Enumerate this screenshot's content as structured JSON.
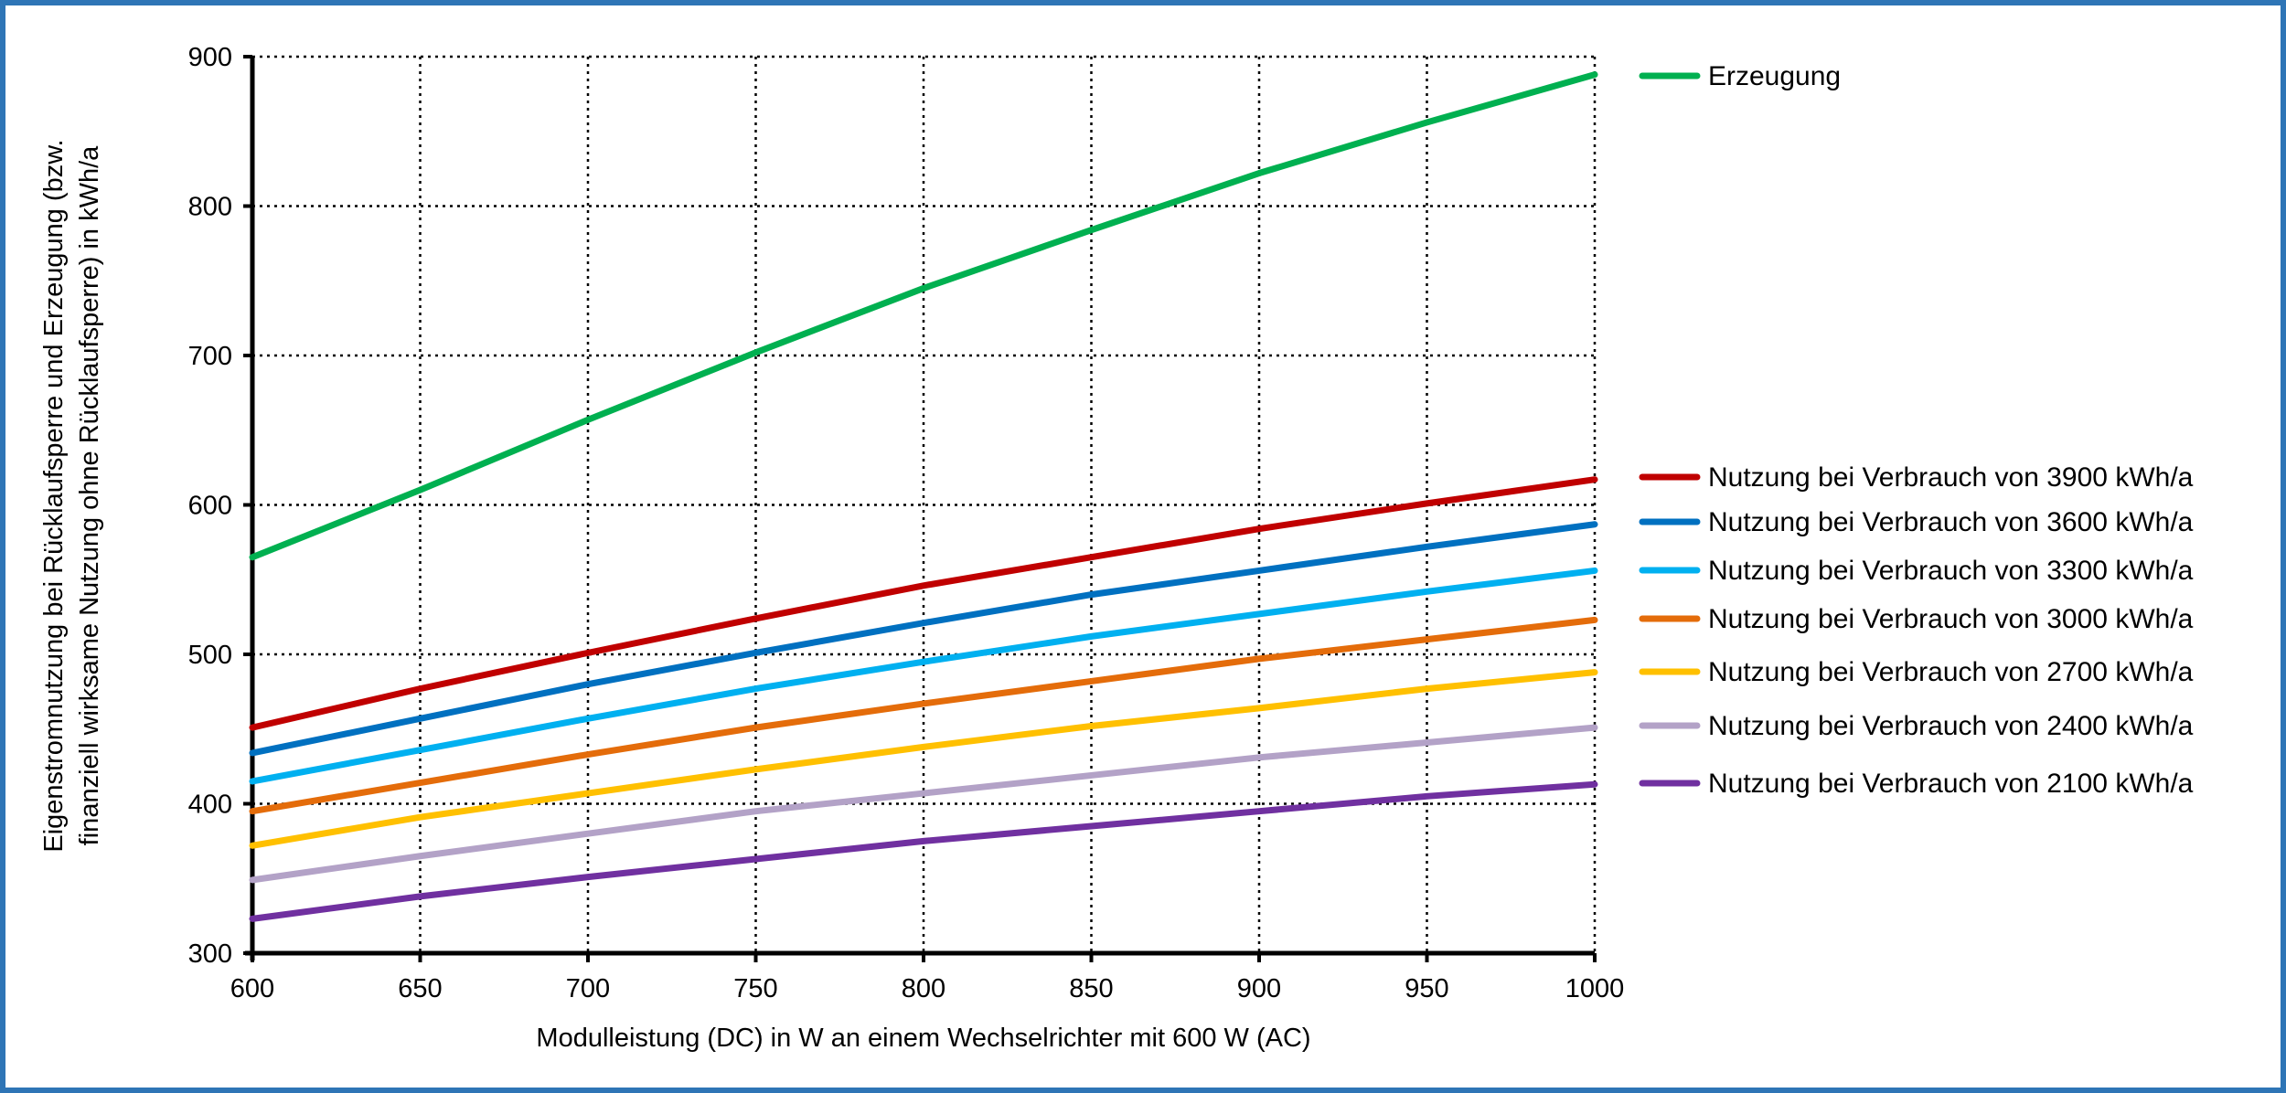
{
  "chart_data": {
    "type": "line",
    "title": "",
    "xlabel": "Modulleistung (DC) in W an einem Wechselrichter mit 600 W (AC)",
    "ylabel_lines": [
      "Eigenstromnutzung bei Rücklaufsperre und Erzeugung (bzw.",
      "finanziell wirksame Nutzung ohne Rücklaufsperre) in kWh/a"
    ],
    "xlim": [
      600,
      1000
    ],
    "ylim": [
      300,
      900
    ],
    "x_ticks": [
      600,
      650,
      700,
      750,
      800,
      850,
      900,
      950,
      1000
    ],
    "y_ticks": [
      300,
      400,
      500,
      600,
      700,
      800,
      900
    ],
    "grid": "dotted",
    "legend_position": "right",
    "x": [
      600,
      650,
      700,
      750,
      800,
      850,
      900,
      950,
      1000
    ],
    "series": [
      {
        "name": "Erzeugung",
        "color": "#00b050",
        "values": [
          565,
          610,
          657,
          702,
          745,
          784,
          822,
          856,
          888
        ]
      },
      {
        "name": "Nutzung bei Verbrauch von 3900 kWh/a",
        "color": "#c00000",
        "values": [
          451,
          477,
          501,
          524,
          546,
          565,
          584,
          601,
          617
        ]
      },
      {
        "name": "Nutzung bei Verbrauch von 3600 kWh/a",
        "color": "#0070c0",
        "values": [
          434,
          457,
          480,
          501,
          521,
          540,
          556,
          572,
          587
        ]
      },
      {
        "name": "Nutzung bei Verbrauch von 3300 kWh/a",
        "color": "#00b0f0",
        "values": [
          415,
          436,
          457,
          477,
          495,
          512,
          527,
          542,
          556
        ]
      },
      {
        "name": "Nutzung bei Verbrauch von 3000 kWh/a",
        "color": "#e46c0a",
        "values": [
          395,
          414,
          433,
          451,
          467,
          482,
          497,
          510,
          523
        ]
      },
      {
        "name": "Nutzung bei Verbrauch von 2700 kWh/a",
        "color": "#ffc000",
        "values": [
          372,
          391,
          407,
          423,
          438,
          452,
          464,
          477,
          488
        ]
      },
      {
        "name": "Nutzung bei Verbrauch von 2400 kWh/a",
        "color": "#b3a2c7",
        "values": [
          349,
          365,
          380,
          395,
          407,
          419,
          431,
          441,
          451
        ]
      },
      {
        "name": "Nutzung bei Verbrauch von 2100 kWh/a",
        "color": "#7030a0",
        "values": [
          323,
          338,
          351,
          363,
          375,
          385,
          395,
          405,
          413
        ]
      }
    ]
  }
}
